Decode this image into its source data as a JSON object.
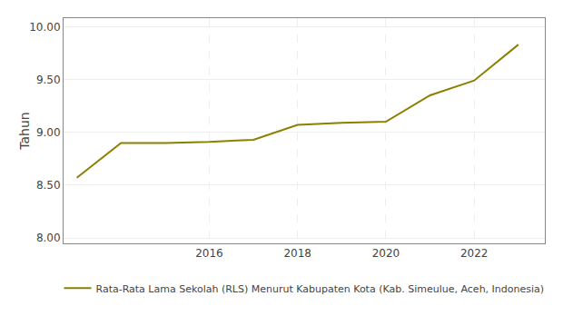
{
  "chart_data": {
    "type": "line",
    "x": [
      2013,
      2014,
      2015,
      2016,
      2017,
      2018,
      2019,
      2020,
      2021,
      2022,
      2023
    ],
    "series": [
      {
        "name": "Rata-Rata Lama Sekolah (RLS) Menurut Kabupaten Kota (Kab. Simeulue, Aceh, Indonesia)",
        "color": "#8B8000",
        "values": [
          8.57,
          8.9,
          8.9,
          8.91,
          8.93,
          9.07,
          9.09,
          9.1,
          9.35,
          9.49,
          9.83
        ]
      }
    ],
    "ylabel": "Tahun",
    "xlim": [
      2012.7,
      2023.6
    ],
    "xticks": [
      2016,
      2018,
      2020,
      2022
    ],
    "ylim": [
      7.95,
      10.08
    ],
    "yticks": [
      {
        "value": 8.0,
        "label": "8.00"
      },
      {
        "value": 8.5,
        "label": "8.50"
      },
      {
        "value": 9.0,
        "label": "9.00"
      },
      {
        "value": 9.5,
        "label": "9.50"
      },
      {
        "value": 10.0,
        "label": "10.00"
      }
    ],
    "grid": true,
    "legend": "bottom"
  }
}
